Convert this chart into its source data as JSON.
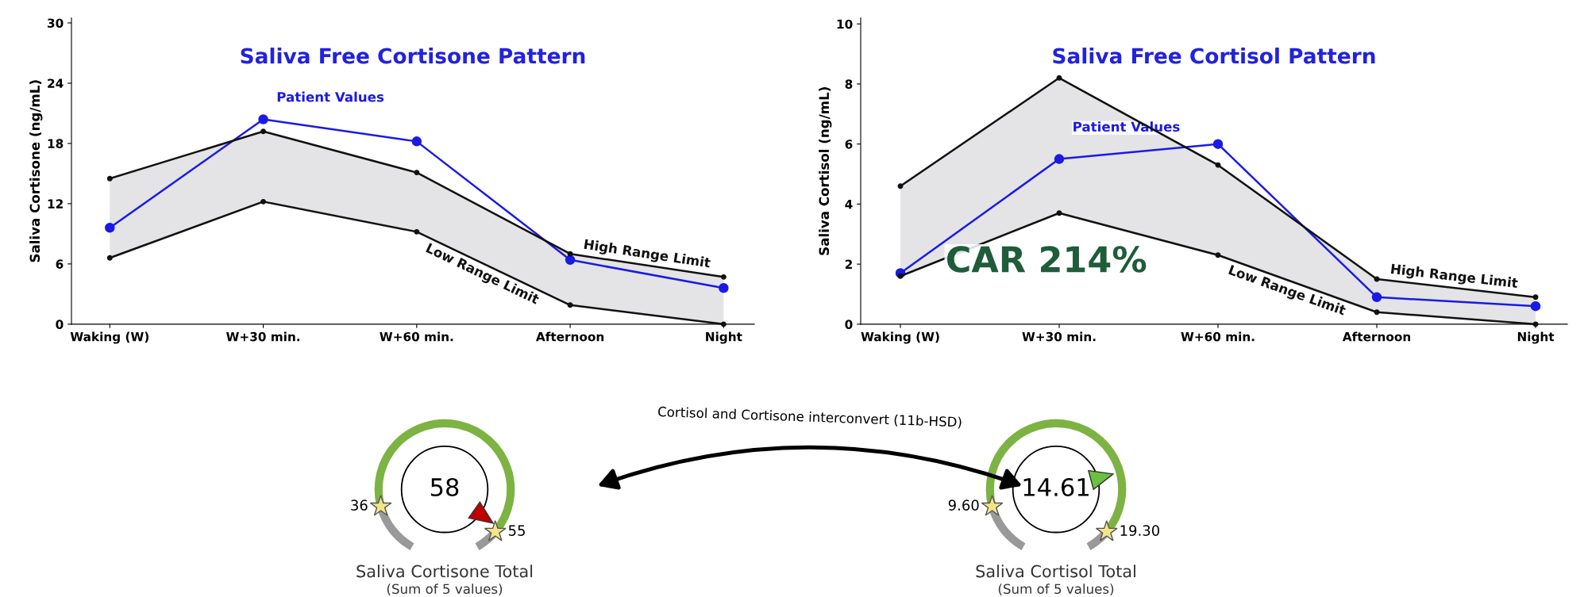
{
  "chart_data": [
    {
      "type": "line",
      "title": "Saliva Free Cortisone Pattern",
      "ylabel": "Saliva Cortisone (ng/mL)",
      "categories": [
        "Waking (W)",
        "W+30 min.",
        "W+60 min.",
        "Afternoon",
        "Night"
      ],
      "ylim": [
        0,
        30.5
      ],
      "yticks": [
        0,
        6,
        12,
        18,
        24,
        30
      ],
      "grid": false,
      "series": [
        {
          "name": "High Range Limit",
          "color": "#111111",
          "marker": "circle",
          "values": [
            14.5,
            19.2,
            15.1,
            7.0,
            4.7
          ],
          "lower": [
            6.6,
            12.2,
            9.2,
            1.9,
            0
          ],
          "upper": [
            14.5,
            19.2,
            15.1,
            7.0,
            4.7
          ]
        },
        {
          "name": "Low Range Limit",
          "color": "#111111",
          "marker": "circle",
          "values": [
            6.6,
            12.2,
            9.2,
            1.9,
            0
          ]
        },
        {
          "name": "Patient Values",
          "color": "#1a1ae6",
          "marker": "circle",
          "values": [
            9.6,
            20.4,
            18.2,
            6.4,
            3.6
          ]
        }
      ]
    },
    {
      "type": "line",
      "title": "Saliva Free Cortisol Pattern",
      "ylabel": "Saliva Cortisol (ng/mL)",
      "categories": [
        "Waking (W)",
        "W+30 min.",
        "W+60 min.",
        "Afternoon",
        "Night"
      ],
      "ylim": [
        0,
        10.2
      ],
      "yticks": [
        0,
        2,
        4,
        6,
        8,
        10
      ],
      "grid": false,
      "annotations": [
        "CAR 214%"
      ],
      "series": [
        {
          "name": "High Range Limit",
          "color": "#111111",
          "marker": "circle",
          "values": [
            4.6,
            8.2,
            5.3,
            1.5,
            0.9
          ],
          "lower": [
            1.6,
            3.7,
            2.3,
            0.4,
            0
          ],
          "upper": [
            4.6,
            8.2,
            5.3,
            1.5,
            0.9
          ]
        },
        {
          "name": "Low Range Limit",
          "color": "#111111",
          "marker": "circle",
          "values": [
            1.6,
            3.7,
            2.3,
            0.4,
            0
          ]
        },
        {
          "name": "Patient Values",
          "color": "#1a1ae6",
          "marker": "circle",
          "values": [
            1.7,
            5.5,
            6.0,
            0.9,
            0.6
          ]
        }
      ]
    },
    {
      "type": "other",
      "title": "Saliva Cortisone Total",
      "subtitle": "(Sum of 5 values)",
      "values": [
        58
      ],
      "colors": [
        "#c00000"
      ],
      "data_labels": true,
      "annotations": [
        "36",
        "55",
        "Cortisol and Cortisone interconvert (11b-HSD)"
      ]
    },
    {
      "type": "other",
      "title": "Saliva Cortisol Total",
      "subtitle": "(Sum of 5 values)",
      "values": [
        14.61
      ],
      "colors": [
        "#6cc040"
      ],
      "data_labels": true,
      "annotations": [
        "9.60",
        "19.30"
      ]
    }
  ]
}
